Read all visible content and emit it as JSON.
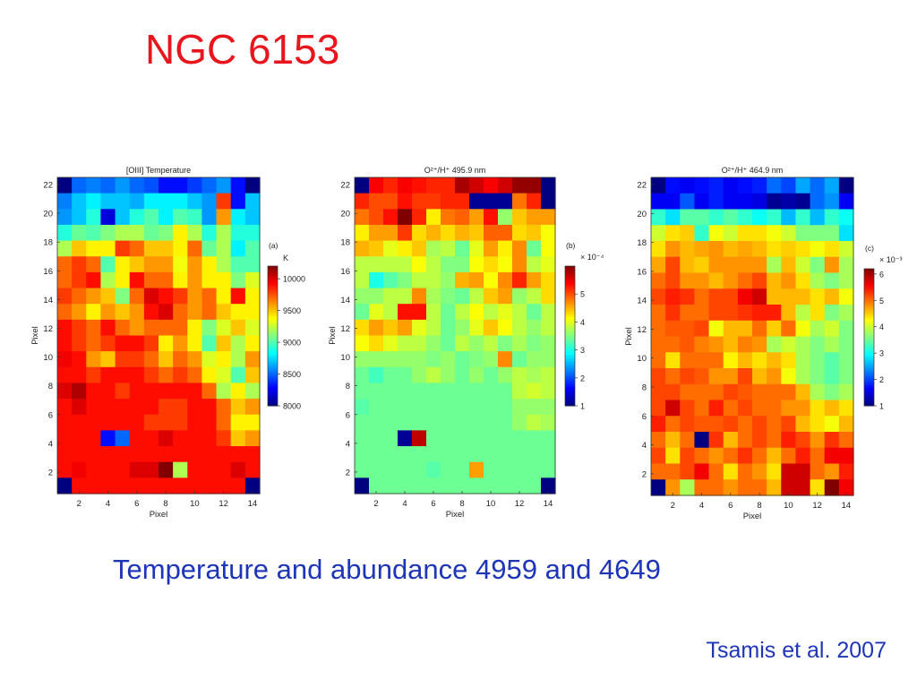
{
  "slide": {
    "title": "NGC 6153",
    "caption": "Temperature and abundance 4959 and 4649",
    "credit": "Tsamis et al. 2007"
  },
  "chart_data": [
    {
      "type": "heatmap",
      "panel_label": "(a)",
      "title": "[OIII] Temperature",
      "xlabel": "Pixel",
      "ylabel": "Pixel",
      "x_ticks": [
        2,
        4,
        6,
        8,
        10,
        12,
        14
      ],
      "y_ticks": [
        2,
        4,
        6,
        8,
        10,
        12,
        14,
        16,
        18,
        20,
        22
      ],
      "colorbar": {
        "unit": "K",
        "scale": "",
        "min": 8000,
        "max": 10200,
        "ticks": [
          8000,
          8500,
          9000,
          9500,
          10000
        ]
      },
      "rows_top_to_bottom": [
        [
          7700,
          8500,
          8550,
          8500,
          8600,
          8500,
          8450,
          8300,
          8300,
          8400,
          8500,
          8600,
          8300,
          8000
        ],
        [
          8550,
          8700,
          8800,
          8700,
          8700,
          8650,
          8800,
          8800,
          8800,
          8700,
          8600,
          9800,
          8300,
          8700
        ],
        [
          8600,
          8700,
          8900,
          8200,
          8700,
          8900,
          9000,
          8800,
          9000,
          8950,
          8600,
          9600,
          8800,
          8700
        ],
        [
          8900,
          9050,
          9000,
          9100,
          9200,
          9200,
          9050,
          9100,
          9400,
          9200,
          8900,
          9200,
          8900,
          8900
        ],
        [
          9200,
          9500,
          9400,
          9400,
          9800,
          9700,
          9500,
          9500,
          9400,
          9700,
          9050,
          9200,
          8800,
          9000
        ],
        [
          9700,
          9800,
          9700,
          9000,
          9400,
          9500,
          9600,
          9600,
          9350,
          9600,
          9400,
          9200,
          9000,
          9000
        ],
        [
          9700,
          9800,
          9900,
          9200,
          9400,
          9900,
          9700,
          9700,
          9400,
          9600,
          9400,
          9400,
          9100,
          9300
        ],
        [
          9800,
          9700,
          9600,
          9500,
          9100,
          9700,
          10000,
          9900,
          9800,
          9600,
          9700,
          9400,
          9900,
          9400
        ],
        [
          9700,
          9600,
          9400,
          9600,
          9500,
          9600,
          9900,
          10000,
          9700,
          9600,
          9700,
          9500,
          9400,
          9400
        ],
        [
          9900,
          9800,
          9700,
          9900,
          9700,
          9600,
          9700,
          9700,
          9700,
          9400,
          9100,
          9300,
          9500,
          9300
        ],
        [
          9900,
          9800,
          9700,
          9800,
          9900,
          9900,
          9800,
          9400,
          9600,
          9400,
          9000,
          9500,
          9200,
          9400
        ],
        [
          9950,
          9900,
          9600,
          9500,
          9800,
          9800,
          9700,
          9500,
          9700,
          9600,
          9300,
          9400,
          9200,
          9600
        ],
        [
          9900,
          9900,
          9800,
          9900,
          9900,
          9900,
          9800,
          9700,
          9800,
          9700,
          9400,
          9300,
          9000,
          9500
        ],
        [
          10000,
          10100,
          9900,
          9900,
          9800,
          9900,
          9900,
          9900,
          9900,
          9900,
          9700,
          9200,
          9400,
          9200
        ],
        [
          9900,
          10000,
          9900,
          9900,
          9900,
          9900,
          9900,
          9800,
          9800,
          9900,
          9900,
          9700,
          9500,
          9600
        ],
        [
          9900,
          9900,
          9900,
          9900,
          9900,
          9900,
          9800,
          9800,
          9800,
          9900,
          9900,
          9700,
          9400,
          9400
        ],
        [
          9900,
          9900,
          9900,
          8300,
          8500,
          9900,
          9900,
          10000,
          9900,
          9900,
          9900,
          9800,
          9500,
          9600
        ],
        [
          9900,
          9900,
          9900,
          9900,
          9900,
          9900,
          9900,
          9900,
          9900,
          9900,
          9900,
          9900,
          9900,
          9900
        ],
        [
          9900,
          9950,
          9900,
          9900,
          9900,
          10000,
          10000,
          10200,
          9200,
          9900,
          9900,
          9900,
          10000,
          9900
        ],
        [
          7700,
          9900,
          9900,
          9900,
          9900,
          9900,
          9900,
          9900,
          9900,
          9900,
          9900,
          9900,
          9900,
          7700
        ]
      ]
    },
    {
      "type": "heatmap",
      "panel_label": "(b)",
      "title": "O²⁺/H⁺ 495.9 nm",
      "xlabel": "Pixel",
      "ylabel": "Pixel",
      "x_ticks": [
        2,
        4,
        6,
        8,
        10,
        12,
        14
      ],
      "y_ticks": [
        2,
        4,
        6,
        8,
        10,
        12,
        14,
        16,
        18,
        20,
        22
      ],
      "colorbar": {
        "unit": "",
        "scale": "× 10⁻⁴",
        "min": 1,
        "max": 6,
        "ticks": [
          1,
          2,
          3,
          4,
          5
        ]
      },
      "rows_top_to_bottom": [
        [
          0.7,
          5.4,
          5.2,
          5.4,
          5.3,
          5.2,
          5.2,
          5.8,
          5.6,
          5.4,
          5.6,
          5.9,
          5.9,
          0.8
        ],
        [
          5.2,
          5.0,
          5.0,
          5.3,
          5.1,
          5.1,
          5.2,
          5.2,
          1.1,
          1.1,
          1.1,
          4.8,
          5.2,
          0.8
        ],
        [
          4.8,
          5.0,
          5.3,
          6.1,
          5.2,
          4.2,
          4.8,
          4.9,
          4.6,
          5.3,
          3.6,
          4.4,
          4.6,
          4.6
        ],
        [
          4.2,
          4.6,
          4.6,
          5.1,
          4.3,
          4.5,
          4.3,
          4.5,
          4.4,
          4.9,
          4.9,
          4.3,
          4.4,
          4.1
        ],
        [
          4.5,
          4.4,
          4.0,
          4.2,
          4.4,
          3.7,
          3.8,
          3.4,
          4.0,
          4.6,
          4.2,
          4.7,
          3.4,
          4.1
        ],
        [
          3.8,
          3.8,
          3.8,
          3.8,
          4.1,
          3.8,
          3.5,
          3.5,
          4.1,
          4.3,
          4.1,
          4.7,
          3.8,
          4.0
        ],
        [
          3.8,
          3.0,
          3.3,
          3.5,
          3.8,
          3.8,
          3.6,
          4.5,
          4.6,
          4.1,
          4.7,
          5.2,
          4.6,
          4.3
        ],
        [
          3.6,
          3.6,
          3.8,
          3.8,
          4.7,
          3.7,
          3.5,
          3.4,
          3.8,
          4.4,
          4.6,
          3.6,
          3.8,
          4.3
        ],
        [
          3.4,
          4.0,
          3.8,
          5.3,
          5.3,
          3.8,
          3.4,
          3.8,
          4.1,
          3.8,
          4.0,
          3.8,
          3.4,
          3.8
        ],
        [
          4.3,
          4.6,
          4.4,
          4.6,
          4.0,
          3.8,
          3.4,
          3.6,
          4.0,
          4.4,
          4.1,
          3.8,
          3.6,
          3.8
        ],
        [
          4.1,
          4.3,
          4.0,
          3.8,
          3.8,
          3.6,
          3.4,
          3.8,
          3.6,
          3.8,
          3.5,
          3.7,
          3.5,
          3.6
        ],
        [
          3.6,
          3.6,
          3.6,
          3.6,
          3.6,
          3.5,
          3.6,
          3.4,
          3.5,
          3.6,
          4.7,
          3.4,
          3.6,
          3.6
        ],
        [
          3.4,
          3.2,
          3.4,
          3.4,
          3.6,
          3.8,
          3.6,
          3.4,
          3.6,
          3.4,
          3.6,
          3.8,
          3.7,
          3.8
        ],
        [
          3.4,
          3.4,
          3.4,
          3.4,
          3.4,
          3.4,
          3.4,
          3.4,
          3.4,
          3.4,
          3.4,
          3.8,
          3.9,
          3.8
        ],
        [
          3.3,
          3.4,
          3.4,
          3.4,
          3.4,
          3.4,
          3.4,
          3.4,
          3.4,
          3.4,
          3.4,
          3.6,
          3.6,
          3.6
        ],
        [
          3.4,
          3.4,
          3.4,
          3.4,
          3.4,
          3.4,
          3.4,
          3.4,
          3.4,
          3.4,
          3.4,
          3.6,
          3.8,
          3.7
        ],
        [
          3.4,
          3.4,
          3.4,
          1.1,
          5.7,
          3.4,
          3.4,
          3.4,
          3.4,
          3.4,
          3.4,
          3.4,
          3.4,
          3.4
        ],
        [
          3.4,
          3.4,
          3.4,
          3.4,
          3.4,
          3.4,
          3.4,
          3.4,
          3.4,
          3.4,
          3.4,
          3.4,
          3.4,
          3.4
        ],
        [
          3.4,
          3.4,
          3.4,
          3.4,
          3.4,
          3.3,
          3.4,
          3.4,
          4.6,
          3.4,
          3.4,
          3.4,
          3.4,
          3.4
        ],
        [
          0.8,
          3.4,
          3.4,
          3.4,
          3.4,
          3.4,
          3.4,
          3.4,
          3.4,
          3.4,
          3.4,
          3.4,
          3.4,
          0.8
        ]
      ]
    },
    {
      "type": "heatmap",
      "panel_label": "(c)",
      "title": "O²⁺/H⁺ 464.9 nm",
      "xlabel": "Pixel",
      "ylabel": "Pixel",
      "x_ticks": [
        2,
        4,
        6,
        8,
        10,
        12,
        14
      ],
      "y_ticks": [
        2,
        4,
        6,
        8,
        10,
        12,
        14,
        16,
        18,
        20,
        22
      ],
      "colorbar": {
        "unit": "",
        "scale": "× 10⁻³",
        "min": 1,
        "max": 6.2,
        "ticks": [
          1,
          2,
          3,
          4,
          5,
          6
        ]
      },
      "rows_top_to_bottom": [
        [
          0.9,
          1.7,
          1.6,
          1.7,
          1.8,
          1.6,
          1.7,
          1.8,
          2.2,
          2.0,
          2.5,
          2.2,
          2.5,
          0.9
        ],
        [
          1.6,
          1.6,
          2.1,
          1.6,
          1.8,
          1.6,
          1.6,
          1.5,
          1.1,
          1.2,
          1.1,
          2.2,
          2.4,
          1.6
        ],
        [
          3.2,
          2.8,
          3.4,
          3.4,
          3.2,
          3.4,
          3.2,
          3.0,
          3.2,
          2.6,
          3.2,
          2.6,
          3.2,
          3.0
        ],
        [
          4.0,
          4.4,
          4.5,
          3.2,
          4.2,
          4.0,
          4.4,
          4.4,
          4.2,
          4.0,
          3.6,
          3.6,
          3.6,
          2.8
        ],
        [
          4.4,
          4.8,
          4.6,
          4.7,
          4.8,
          4.6,
          4.7,
          4.6,
          4.4,
          4.5,
          4.4,
          4.2,
          4.4,
          4.0
        ],
        [
          4.7,
          5.2,
          4.6,
          4.5,
          4.8,
          4.8,
          4.8,
          4.8,
          3.8,
          4.6,
          4.0,
          3.6,
          4.8,
          3.8
        ],
        [
          5.0,
          5.2,
          4.8,
          4.8,
          4.6,
          4.8,
          5.0,
          5.2,
          4.6,
          4.8,
          4.4,
          3.8,
          3.6,
          3.8
        ],
        [
          5.2,
          5.4,
          5.3,
          5.0,
          5.2,
          5.2,
          5.6,
          5.8,
          4.6,
          4.6,
          4.6,
          4.4,
          4.6,
          4.2
        ],
        [
          5.0,
          5.3,
          5.0,
          5.0,
          5.2,
          5.2,
          5.3,
          5.4,
          5.4,
          4.6,
          3.9,
          4.4,
          3.6,
          3.8
        ],
        [
          5.0,
          5.1,
          5.1,
          5.2,
          4.2,
          4.6,
          4.6,
          5.0,
          4.5,
          5.0,
          4.2,
          3.8,
          4.0,
          3.6
        ],
        [
          5.0,
          5.0,
          5.1,
          4.9,
          4.8,
          4.6,
          4.9,
          4.8,
          3.8,
          4.0,
          3.8,
          3.6,
          3.8,
          3.6
        ],
        [
          5.0,
          4.4,
          5.0,
          5.0,
          5.0,
          4.3,
          4.6,
          4.4,
          4.6,
          4.4,
          3.8,
          3.6,
          3.4,
          3.6
        ],
        [
          5.2,
          5.0,
          5.2,
          5.1,
          4.8,
          4.8,
          5.2,
          4.6,
          4.8,
          4.2,
          3.8,
          3.6,
          3.4,
          3.6
        ],
        [
          5.2,
          5.2,
          5.0,
          5.0,
          5.0,
          5.2,
          5.1,
          5.0,
          5.0,
          5.0,
          4.6,
          3.8,
          3.6,
          3.8
        ],
        [
          5.2,
          5.8,
          5.2,
          5.0,
          5.4,
          5.0,
          5.2,
          5.0,
          5.0,
          4.8,
          4.8,
          4.4,
          4.6,
          4.4
        ],
        [
          5.4,
          5.0,
          5.2,
          5.1,
          5.1,
          5.2,
          5.0,
          5.2,
          5.0,
          5.2,
          4.6,
          4.4,
          4.2,
          4.6
        ],
        [
          5.0,
          4.6,
          5.0,
          0.9,
          5.3,
          4.6,
          5.0,
          5.2,
          5.0,
          5.4,
          5.2,
          4.8,
          5.3,
          5.0
        ],
        [
          5.2,
          4.4,
          5.2,
          5.0,
          4.8,
          5.0,
          5.3,
          5.0,
          4.6,
          5.0,
          5.4,
          5.0,
          5.6,
          5.6
        ],
        [
          5.0,
          5.0,
          5.2,
          5.6,
          5.0,
          4.4,
          5.0,
          4.8,
          4.4,
          5.8,
          5.8,
          5.0,
          4.8,
          5.4
        ],
        [
          0.9,
          4.8,
          3.8,
          5.0,
          5.0,
          4.8,
          5.0,
          5.0,
          4.6,
          5.8,
          5.8,
          4.4,
          6.2,
          5.6
        ]
      ]
    }
  ]
}
